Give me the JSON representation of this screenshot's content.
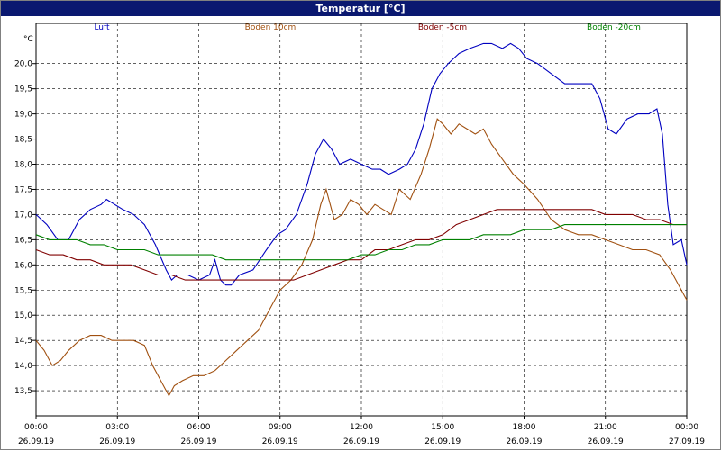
{
  "window": {
    "title": "Temperatur [°C]"
  },
  "chart_data": {
    "type": "line",
    "title": "Temperatur [°C]",
    "ylabel": "°C",
    "ylim": [
      13.0,
      20.8
    ],
    "xlim": [
      0,
      24
    ],
    "grid": true,
    "legend_position": "top",
    "y_ticks": [
      "13,5",
      "14,0",
      "14,5",
      "15,0",
      "15,5",
      "16,0",
      "16,5",
      "17,0",
      "17,5",
      "18,0",
      "18,5",
      "19,0",
      "19,5",
      "20,0"
    ],
    "x_ticks": [
      {
        "x": 0,
        "time": "00:00",
        "date": "26.09.19"
      },
      {
        "x": 3,
        "time": "03:00",
        "date": "26.09.19"
      },
      {
        "x": 6,
        "time": "06:00",
        "date": "26.09.19"
      },
      {
        "x": 9,
        "time": "09:00",
        "date": "26.09.19"
      },
      {
        "x": 12,
        "time": "12:00",
        "date": "26.09.19"
      },
      {
        "x": 15,
        "time": "15:00",
        "date": "26.09.19"
      },
      {
        "x": 18,
        "time": "18:00",
        "date": "26.09.19"
      },
      {
        "x": 21,
        "time": "21:00",
        "date": "26.09.19"
      },
      {
        "x": 24,
        "time": "00:00",
        "date": "27.09.19"
      }
    ],
    "series": [
      {
        "name": "Luft",
        "color": "#0000c0",
        "x": [
          0,
          0.4,
          0.8,
          1.2,
          1.6,
          2.0,
          2.4,
          2.6,
          2.9,
          3.2,
          3.6,
          4.0,
          4.4,
          4.8,
          5.0,
          5.2,
          5.6,
          6.0,
          6.4,
          6.6,
          6.8,
          7.0,
          7.2,
          7.5,
          8.0,
          8.5,
          8.9,
          9.2,
          9.6,
          10.0,
          10.3,
          10.6,
          10.9,
          11.2,
          11.6,
          12.0,
          12.4,
          12.7,
          13.0,
          13.4,
          13.7,
          14.0,
          14.3,
          14.6,
          14.9,
          15.2,
          15.6,
          16.0,
          16.5,
          16.8,
          17.2,
          17.5,
          17.8,
          18.1,
          18.5,
          19.0,
          19.5,
          20.0,
          20.5,
          20.8,
          21.1,
          21.4,
          21.8,
          22.2,
          22.6,
          22.9,
          23.1,
          23.3,
          23.5,
          23.8,
          24.0
        ],
        "y": [
          17.0,
          16.8,
          16.5,
          16.5,
          16.9,
          17.1,
          17.2,
          17.3,
          17.2,
          17.1,
          17.0,
          16.8,
          16.4,
          15.9,
          15.7,
          15.8,
          15.8,
          15.7,
          15.8,
          16.1,
          15.7,
          15.6,
          15.6,
          15.8,
          15.9,
          16.3,
          16.6,
          16.7,
          17.0,
          17.6,
          18.2,
          18.5,
          18.3,
          18.0,
          18.1,
          18.0,
          17.9,
          17.9,
          17.8,
          17.9,
          18.0,
          18.3,
          18.8,
          19.5,
          19.8,
          20.0,
          20.2,
          20.3,
          20.4,
          20.4,
          20.3,
          20.4,
          20.3,
          20.1,
          20.0,
          19.8,
          19.6,
          19.6,
          19.6,
          19.3,
          18.7,
          18.6,
          18.9,
          19.0,
          19.0,
          19.1,
          18.6,
          17.2,
          16.4,
          16.5,
          16.0
        ]
      },
      {
        "name": "Boden 10cm",
        "color": "#a05010",
        "x": [
          0,
          0.3,
          0.6,
          0.9,
          1.2,
          1.6,
          2.0,
          2.4,
          2.8,
          3.2,
          3.6,
          4.0,
          4.3,
          4.6,
          4.9,
          5.1,
          5.4,
          5.8,
          6.2,
          6.6,
          7.0,
          7.4,
          7.8,
          8.2,
          8.6,
          9.0,
          9.4,
          9.8,
          10.2,
          10.5,
          10.7,
          11.0,
          11.3,
          11.6,
          11.9,
          12.2,
          12.5,
          12.8,
          13.1,
          13.4,
          13.8,
          14.2,
          14.5,
          14.8,
          15.0,
          15.3,
          15.6,
          15.9,
          16.2,
          16.5,
          16.8,
          17.2,
          17.6,
          18.0,
          18.5,
          19.0,
          19.5,
          20.0,
          20.5,
          21.0,
          21.5,
          22.0,
          22.5,
          23.0,
          23.4,
          23.7,
          24.0
        ],
        "y": [
          14.5,
          14.3,
          14.0,
          14.1,
          14.3,
          14.5,
          14.6,
          14.6,
          14.5,
          14.5,
          14.5,
          14.4,
          14.0,
          13.7,
          13.4,
          13.6,
          13.7,
          13.8,
          13.8,
          13.9,
          14.1,
          14.3,
          14.5,
          14.7,
          15.1,
          15.5,
          15.7,
          16.0,
          16.5,
          17.2,
          17.5,
          16.9,
          17.0,
          17.3,
          17.2,
          17.0,
          17.2,
          17.1,
          17.0,
          17.5,
          17.3,
          17.8,
          18.3,
          18.9,
          18.8,
          18.6,
          18.8,
          18.7,
          18.6,
          18.7,
          18.4,
          18.1,
          17.8,
          17.6,
          17.3,
          16.9,
          16.7,
          16.6,
          16.6,
          16.5,
          16.4,
          16.3,
          16.3,
          16.2,
          15.9,
          15.6,
          15.3
        ]
      },
      {
        "name": "Boden -5cm",
        "color": "#800000",
        "x": [
          0,
          0.5,
          1.0,
          1.5,
          2.0,
          2.5,
          3.0,
          3.5,
          4.0,
          4.5,
          5.0,
          5.5,
          6.0,
          6.5,
          7.0,
          7.5,
          8.0,
          8.5,
          9.0,
          9.5,
          10.0,
          10.5,
          11.0,
          11.5,
          12.0,
          12.5,
          13.0,
          13.5,
          14.0,
          14.5,
          15.0,
          15.5,
          16.0,
          16.5,
          17.0,
          17.5,
          18.0,
          18.5,
          19.0,
          19.5,
          20.0,
          20.5,
          21.0,
          21.5,
          22.0,
          22.5,
          23.0,
          23.5,
          24.0
        ],
        "y": [
          16.3,
          16.2,
          16.2,
          16.1,
          16.1,
          16.0,
          16.0,
          16.0,
          15.9,
          15.8,
          15.8,
          15.7,
          15.7,
          15.7,
          15.7,
          15.7,
          15.7,
          15.7,
          15.7,
          15.7,
          15.8,
          15.9,
          16.0,
          16.1,
          16.1,
          16.3,
          16.3,
          16.4,
          16.5,
          16.5,
          16.6,
          16.8,
          16.9,
          17.0,
          17.1,
          17.1,
          17.1,
          17.1,
          17.1,
          17.1,
          17.1,
          17.1,
          17.0,
          17.0,
          17.0,
          16.9,
          16.9,
          16.8,
          16.8
        ]
      },
      {
        "name": "Boden -20cm",
        "color": "#008000",
        "x": [
          0,
          0.5,
          1.0,
          1.5,
          2.0,
          2.5,
          3.0,
          3.5,
          4.0,
          4.5,
          5.0,
          5.5,
          6.0,
          6.5,
          7.0,
          7.5,
          8.0,
          8.5,
          9.0,
          9.5,
          10.0,
          10.5,
          11.0,
          11.5,
          12.0,
          12.5,
          13.0,
          13.5,
          14.0,
          14.5,
          15.0,
          15.5,
          16.0,
          16.5,
          17.0,
          17.5,
          18.0,
          18.5,
          19.0,
          19.5,
          20.0,
          20.5,
          21.0,
          21.5,
          22.0,
          22.5,
          23.0,
          23.5,
          24.0
        ],
        "y": [
          16.6,
          16.5,
          16.5,
          16.5,
          16.4,
          16.4,
          16.3,
          16.3,
          16.3,
          16.2,
          16.2,
          16.2,
          16.2,
          16.2,
          16.1,
          16.1,
          16.1,
          16.1,
          16.1,
          16.1,
          16.1,
          16.1,
          16.1,
          16.1,
          16.2,
          16.2,
          16.3,
          16.3,
          16.4,
          16.4,
          16.5,
          16.5,
          16.5,
          16.6,
          16.6,
          16.6,
          16.7,
          16.7,
          16.7,
          16.8,
          16.8,
          16.8,
          16.8,
          16.8,
          16.8,
          16.8,
          16.8,
          16.8,
          16.8
        ]
      }
    ]
  }
}
